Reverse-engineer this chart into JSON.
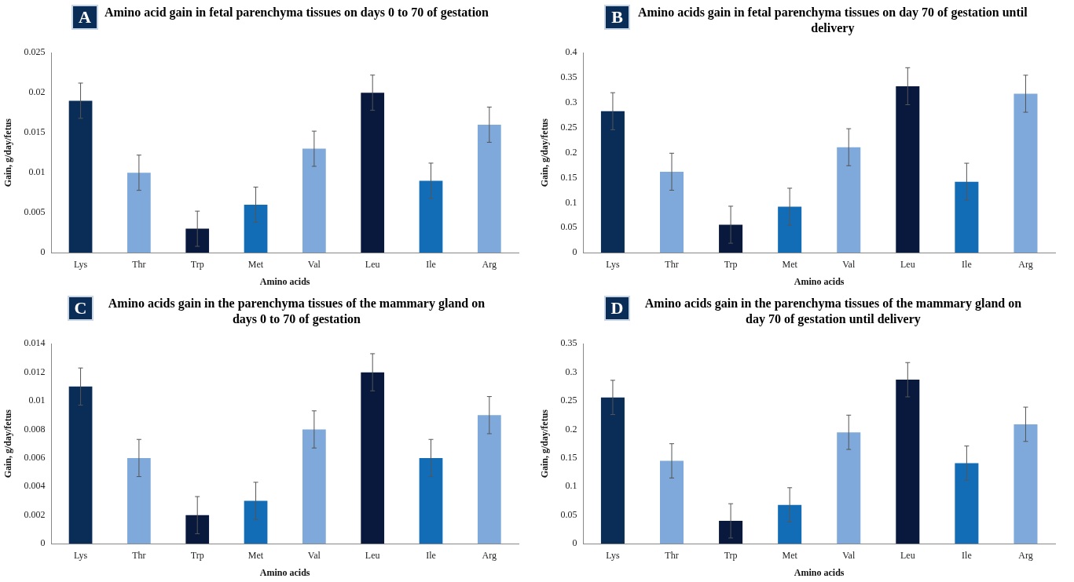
{
  "chart_data": [
    {
      "type": "bar",
      "title": "Amino acid gain in fetal parenchyma tissues on days 0 to 70 of gestation",
      "annotations": [
        "A"
      ],
      "xlabel": "Amino acids",
      "ylabel": "Gain, g/day/fetus",
      "categories": [
        "Lys",
        "Thr",
        "Trp",
        "Met",
        "Val",
        "Leu",
        "Ile",
        "Arg"
      ],
      "values": [
        0.019,
        0.01,
        0.003,
        0.006,
        0.013,
        0.02,
        0.009,
        0.016
      ],
      "errors": [
        0.0022,
        0.0022,
        0.0022,
        0.0022,
        0.0022,
        0.0022,
        0.0022,
        0.0022
      ],
      "colors": [
        "#0a2d57",
        "#7ea9da",
        "#08193d",
        "#136db6",
        "#7ea9da",
        "#08193d",
        "#136db6",
        "#7ea9da"
      ],
      "ylim": [
        0,
        0.025
      ],
      "yticks": [
        0,
        0.005,
        0.01,
        0.015,
        0.02,
        0.025
      ],
      "grid": false,
      "legend": false
    },
    {
      "type": "bar",
      "title": "Amino acids gain in fetal parenchyma tissues on day 70 of gestation until delivery",
      "annotations": [
        "B"
      ],
      "xlabel": "Amino acids",
      "ylabel": "Gain, g/day/fetus",
      "categories": [
        "Lys",
        "Thr",
        "Trp",
        "Met",
        "Val",
        "Leu",
        "Ile",
        "Arg"
      ],
      "values": [
        0.283,
        0.162,
        0.056,
        0.092,
        0.211,
        0.333,
        0.142,
        0.318
      ],
      "errors": [
        0.037,
        0.037,
        0.037,
        0.037,
        0.037,
        0.037,
        0.037,
        0.037
      ],
      "colors": [
        "#0a2d57",
        "#7ea9da",
        "#08193d",
        "#136db6",
        "#7ea9da",
        "#08193d",
        "#136db6",
        "#7ea9da"
      ],
      "ylim": [
        0,
        0.4
      ],
      "yticks": [
        0,
        0.05,
        0.1,
        0.15,
        0.2,
        0.25,
        0.3,
        0.35,
        0.4
      ],
      "grid": false,
      "legend": false
    },
    {
      "type": "bar",
      "title": "Amino acids gain in the parenchyma tissues of the mammary gland on days 0 to 70 of gestation",
      "annotations": [
        "C"
      ],
      "xlabel": "Amino acids",
      "ylabel": "Gain, g/day/fetus",
      "categories": [
        "Lys",
        "Thr",
        "Trp",
        "Met",
        "Val",
        "Leu",
        "Ile",
        "Arg"
      ],
      "values": [
        0.011,
        0.006,
        0.002,
        0.003,
        0.008,
        0.012,
        0.006,
        0.009
      ],
      "errors": [
        0.0013,
        0.0013,
        0.0013,
        0.0013,
        0.0013,
        0.0013,
        0.0013,
        0.0013
      ],
      "colors": [
        "#0a2d57",
        "#7ea9da",
        "#08193d",
        "#136db6",
        "#7ea9da",
        "#08193d",
        "#136db6",
        "#7ea9da"
      ],
      "ylim": [
        0,
        0.014
      ],
      "yticks": [
        0,
        0.002,
        0.004,
        0.006,
        0.008,
        0.01,
        0.012,
        0.014
      ],
      "grid": false,
      "legend": false
    },
    {
      "type": "bar",
      "title": "Amino acids gain in the parenchyma tissues of the mammary gland on day 70 of gestation until delivery",
      "annotations": [
        "D"
      ],
      "xlabel": "Amino acids",
      "ylabel": "Gain, g/day/fetus",
      "categories": [
        "Lys",
        "Thr",
        "Trp",
        "Met",
        "Val",
        "Leu",
        "Ile",
        "Arg"
      ],
      "values": [
        0.256,
        0.145,
        0.04,
        0.068,
        0.195,
        0.287,
        0.141,
        0.209
      ],
      "errors": [
        0.03,
        0.03,
        0.03,
        0.03,
        0.03,
        0.03,
        0.03,
        0.03
      ],
      "colors": [
        "#0a2d57",
        "#7ea9da",
        "#08193d",
        "#136db6",
        "#7ea9da",
        "#08193d",
        "#136db6",
        "#7ea9da"
      ],
      "ylim": [
        0,
        0.35
      ],
      "yticks": [
        0,
        0.05,
        0.1,
        0.15,
        0.2,
        0.25,
        0.3,
        0.35
      ],
      "grid": false,
      "legend": false
    }
  ]
}
